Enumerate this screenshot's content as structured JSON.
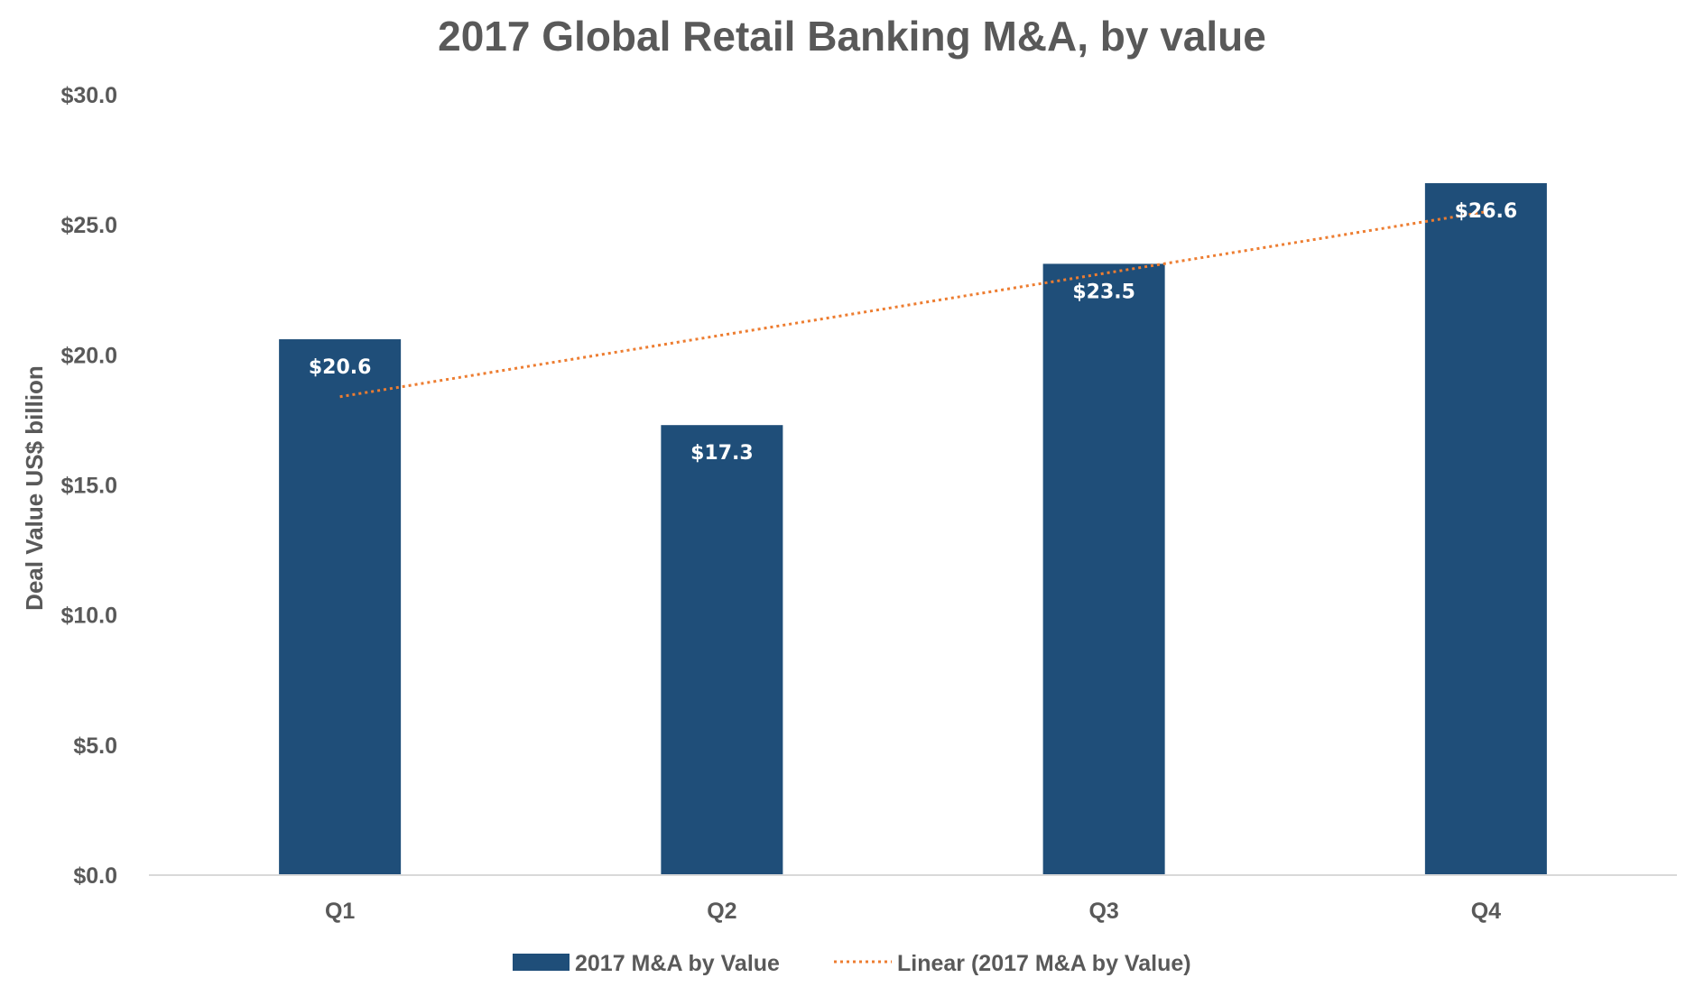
{
  "chart_data": {
    "type": "bar",
    "title": "2017 Global Retail Banking M&A, by value",
    "xlabel": "",
    "ylabel": "Deal Value US$ billion",
    "categories": [
      "Q1",
      "Q2",
      "Q3",
      "Q4"
    ],
    "series": [
      {
        "name": "2017 M&A by Value",
        "type": "bar",
        "values": [
          20.6,
          17.3,
          23.5,
          26.6
        ],
        "data_labels": [
          "$20.6",
          "$17.3",
          "$23.5",
          "$26.6"
        ],
        "color": "#1F4E79"
      },
      {
        "name": "Linear (2017 M&A by Value)",
        "type": "trendline-linear",
        "values": [
          18.39,
          20.76,
          23.13,
          25.5
        ],
        "color": "#ED7D31",
        "line_style": "dotted"
      }
    ],
    "ylim": [
      0,
      30
    ],
    "yticks": [
      0,
      5,
      10,
      15,
      20,
      25,
      30
    ],
    "ytick_labels": [
      "$0.0",
      "$5.0",
      "$10.0",
      "$15.0",
      "$20.0",
      "$25.0",
      "$30.0"
    ],
    "grid": false,
    "legend_position": "bottom"
  },
  "colors": {
    "title": "#595959",
    "axis_text": "#595959",
    "axis_line": "#D9D9D9",
    "data_label": "#FFFFFF"
  }
}
